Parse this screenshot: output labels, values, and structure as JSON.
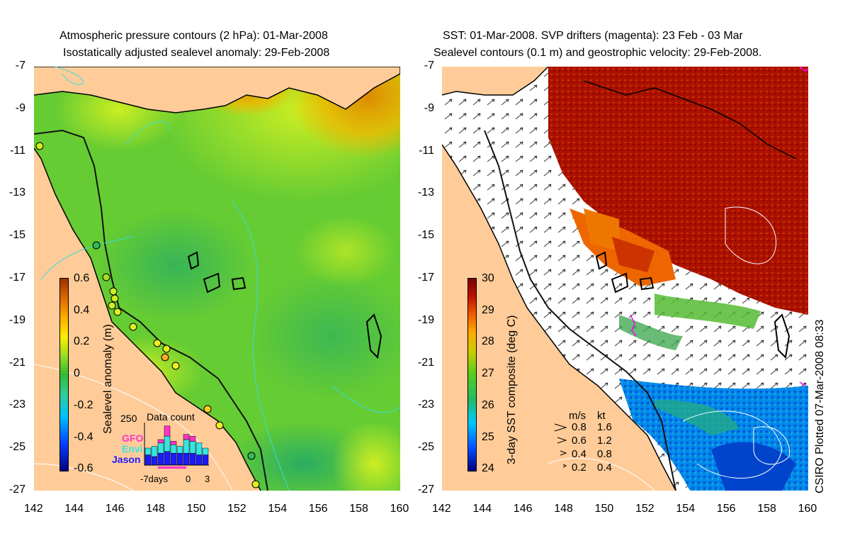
{
  "left_panel": {
    "title_line1": "Atmospheric pressure contours (2 hPa): 01-Mar-2008",
    "title_line2": "Isostatically adjusted sealevel anomaly: 29-Feb-2008",
    "colorbar_label": "Sealevel anomaly (m)",
    "colorbar_ticks": [
      "0.6",
      "0.4",
      "0.2",
      "0",
      "-0.2",
      "-0.4",
      "-0.6"
    ],
    "histogram": {
      "title": "Data count",
      "max_label": "250",
      "legend": [
        {
          "name": "GFO",
          "color": "#ff33cc"
        },
        {
          "name": "Envi",
          "color": "#33e6e6"
        },
        {
          "name": "Jason",
          "color": "#1a1aff"
        }
      ],
      "xticks": [
        "-7days",
        "0",
        "3"
      ],
      "bars_jason": [
        60,
        50,
        70,
        80,
        70,
        70,
        70,
        70,
        60,
        60
      ],
      "bars_envi": [
        40,
        60,
        60,
        90,
        50,
        40,
        80,
        70,
        70,
        40
      ],
      "bars_gfo": [
        0,
        0,
        20,
        60,
        20,
        0,
        30,
        30,
        0,
        0
      ]
    }
  },
  "right_panel": {
    "title_line1": "SST: 01-Mar-2008. SVP drifters (magenta): 23 Feb - 03 Mar",
    "title_line2": "Sealevel contours (0.1 m) and geostrophic velocity: 29-Feb-2008.",
    "colorbar_label": "3-day SST composite (deg C)",
    "colorbar_ticks": [
      "30",
      "29",
      "28",
      "27",
      "26",
      "25",
      "24"
    ],
    "velocity_scale": {
      "header_ms": "m/s",
      "header_kt": "kt",
      "rows": [
        {
          "ms": "0.8",
          "kt": "1.6"
        },
        {
          "ms": "0.6",
          "kt": "1.2"
        },
        {
          "ms": "0.4",
          "kt": "0.8"
        },
        {
          "ms": "0.2",
          "kt": "0.4"
        }
      ]
    }
  },
  "axes": {
    "lat_labels": [
      "-7",
      "-9",
      "-11",
      "-13",
      "-15",
      "-17",
      "-19",
      "-21",
      "-23",
      "-25",
      "-27"
    ],
    "lon_labels": [
      "142",
      "144",
      "146",
      "148",
      "150",
      "152",
      "154",
      "156",
      "158",
      "160"
    ],
    "lat_range": [
      -27,
      -7
    ],
    "lon_range": [
      142,
      160
    ]
  },
  "credit": "CSIRO Plotted 07-Mar-2008 08:33",
  "colors": {
    "land": "#ffcc99",
    "sealevel_scale": [
      "#000080",
      "#0040ff",
      "#00c0ff",
      "#33cc99",
      "#33bb33",
      "#99dd22",
      "#ffee00",
      "#ffaa00",
      "#dd6600",
      "#993300"
    ],
    "sst_scale": [
      "#000080",
      "#0050ff",
      "#00c8ff",
      "#22bb66",
      "#55cc22",
      "#cccc00",
      "#ffaa00",
      "#ee5500",
      "#bb1100",
      "#7a0000"
    ]
  }
}
